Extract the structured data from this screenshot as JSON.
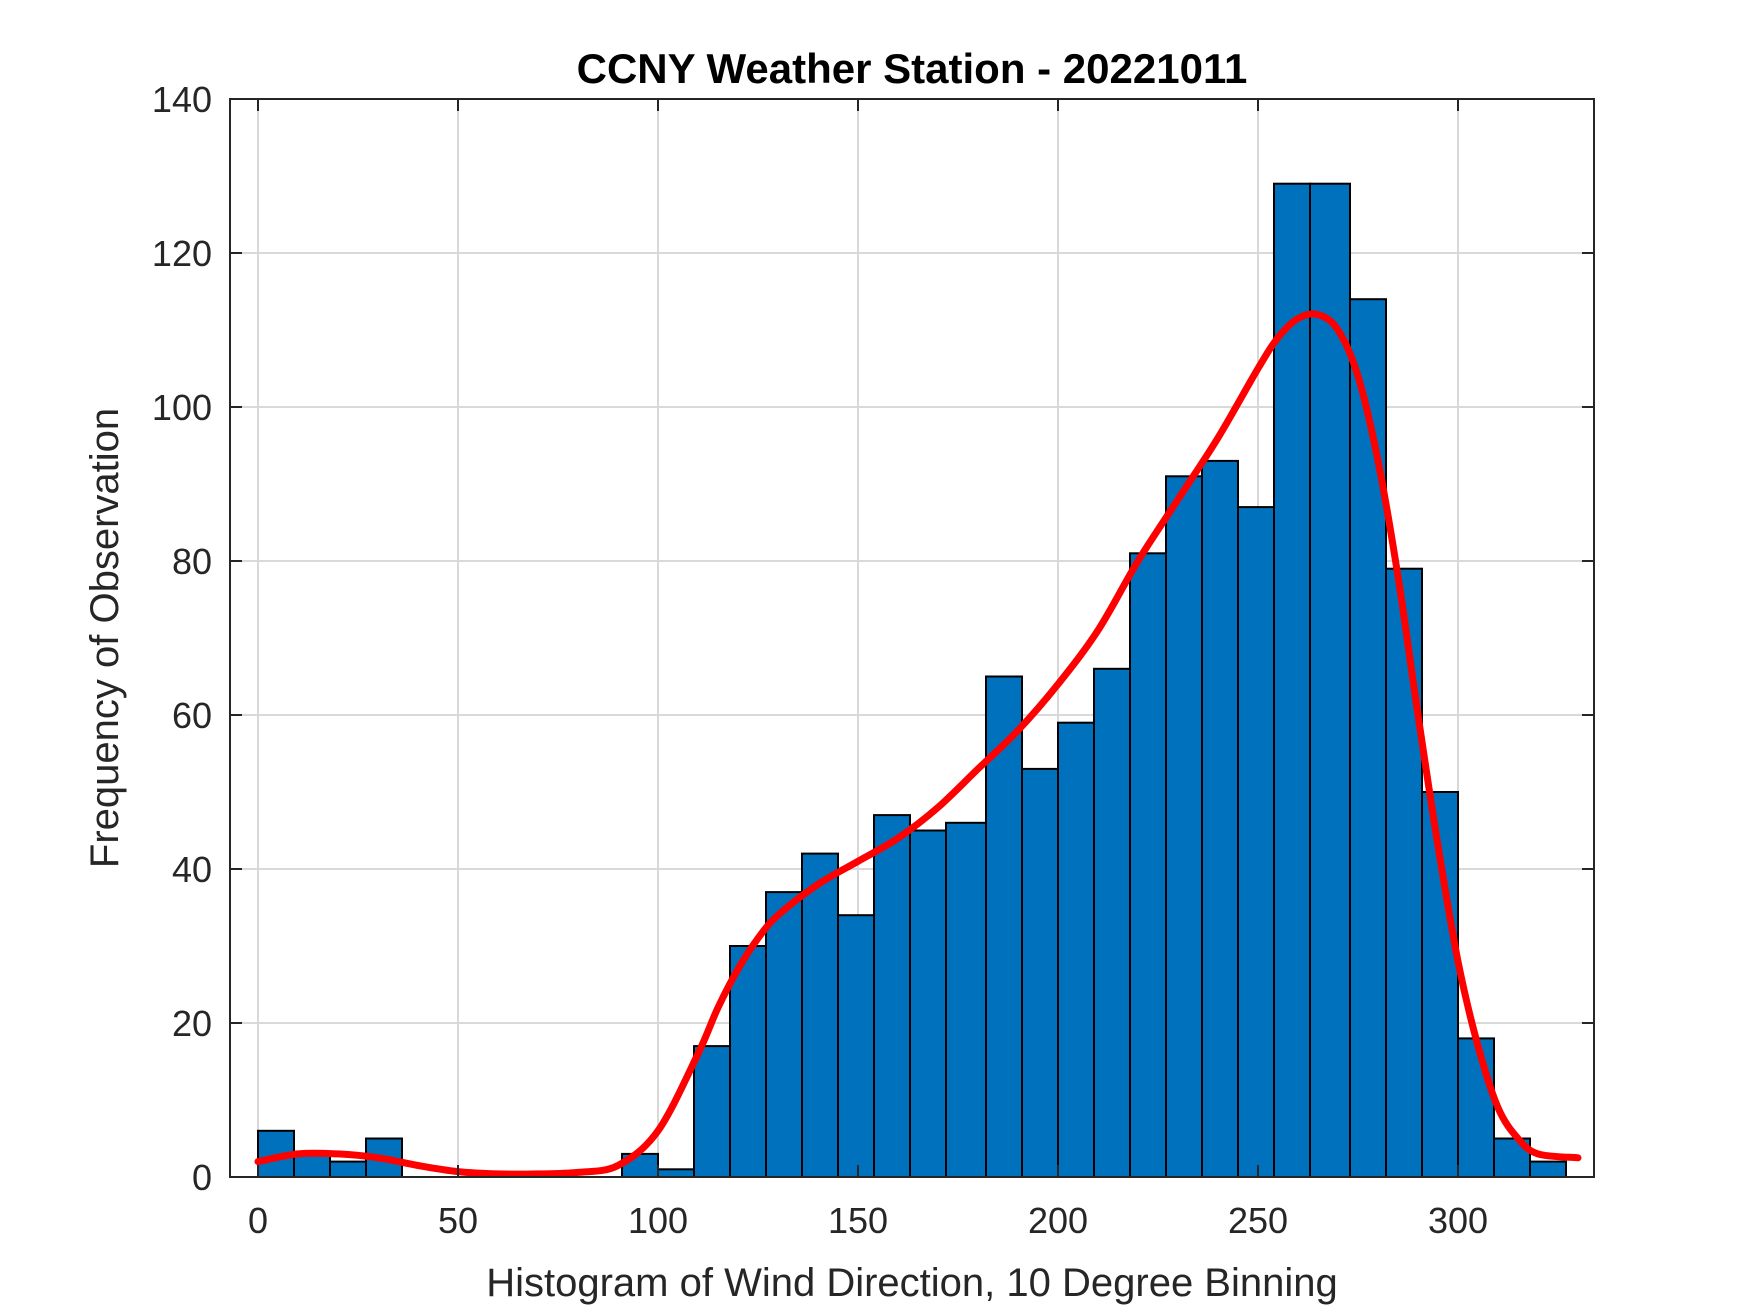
{
  "chart_data": {
    "type": "bar",
    "title": "CCNY Weather Station - 20221011",
    "xlabel": "Histogram of Wind Direction, 10 Degree Binning",
    "ylabel": "Frequency of Observation",
    "xlim": [
      -7,
      334
    ],
    "ylim": [
      0,
      140
    ],
    "xticks": [
      0,
      50,
      100,
      150,
      200,
      250,
      300
    ],
    "yticks": [
      0,
      20,
      40,
      60,
      80,
      100,
      120,
      140
    ],
    "grid": true,
    "bar_color": "#0072BD",
    "bar_edge_color": "#000000",
    "curve_color": "#FF0000",
    "bins": [
      {
        "x0": 0,
        "x1": 9,
        "count": 6
      },
      {
        "x0": 9,
        "x1": 18,
        "count": 3
      },
      {
        "x0": 18,
        "x1": 27,
        "count": 2
      },
      {
        "x0": 27,
        "x1": 36,
        "count": 5
      },
      {
        "x0": 36,
        "x1": 45,
        "count": 0
      },
      {
        "x0": 45,
        "x1": 54,
        "count": 0
      },
      {
        "x0": 54,
        "x1": 63,
        "count": 0
      },
      {
        "x0": 63,
        "x1": 72,
        "count": 0
      },
      {
        "x0": 72,
        "x1": 81,
        "count": 0
      },
      {
        "x0": 81,
        "x1": 91,
        "count": 0
      },
      {
        "x0": 91,
        "x1": 100,
        "count": 3
      },
      {
        "x0": 100,
        "x1": 109,
        "count": 1
      },
      {
        "x0": 109,
        "x1": 118,
        "count": 17
      },
      {
        "x0": 118,
        "x1": 127,
        "count": 30
      },
      {
        "x0": 127,
        "x1": 136,
        "count": 37
      },
      {
        "x0": 136,
        "x1": 145,
        "count": 42
      },
      {
        "x0": 145,
        "x1": 154,
        "count": 34
      },
      {
        "x0": 154,
        "x1": 163,
        "count": 47
      },
      {
        "x0": 163,
        "x1": 172,
        "count": 45
      },
      {
        "x0": 172,
        "x1": 182,
        "count": 46
      },
      {
        "x0": 182,
        "x1": 191,
        "count": 65
      },
      {
        "x0": 191,
        "x1": 200,
        "count": 53
      },
      {
        "x0": 200,
        "x1": 209,
        "count": 59
      },
      {
        "x0": 209,
        "x1": 218,
        "count": 66
      },
      {
        "x0": 218,
        "x1": 227,
        "count": 81
      },
      {
        "x0": 227,
        "x1": 236,
        "count": 91
      },
      {
        "x0": 236,
        "x1": 245,
        "count": 93
      },
      {
        "x0": 245,
        "x1": 254,
        "count": 87
      },
      {
        "x0": 254,
        "x1": 263,
        "count": 129
      },
      {
        "x0": 263,
        "x1": 273,
        "count": 129
      },
      {
        "x0": 273,
        "x1": 282,
        "count": 114
      },
      {
        "x0": 282,
        "x1": 291,
        "count": 79
      },
      {
        "x0": 291,
        "x1": 300,
        "count": 50
      },
      {
        "x0": 300,
        "x1": 309,
        "count": 18
      },
      {
        "x0": 309,
        "x1": 318,
        "count": 5
      },
      {
        "x0": 318,
        "x1": 327,
        "count": 2
      }
    ],
    "density_curve": {
      "x": [
        0,
        10,
        20,
        30,
        40,
        50,
        60,
        70,
        80,
        90,
        100,
        110,
        115,
        120,
        125,
        130,
        140,
        150,
        160,
        170,
        180,
        190,
        200,
        210,
        220,
        230,
        240,
        250,
        255,
        260,
        265,
        270,
        275,
        280,
        285,
        290,
        295,
        300,
        305,
        310,
        315,
        320,
        330
      ],
      "y": [
        2,
        3,
        3,
        2.5,
        1.5,
        0.7,
        0.4,
        0.4,
        0.6,
        1.5,
        6,
        16,
        22,
        27,
        31,
        34,
        38,
        41,
        44,
        48,
        53,
        58,
        64,
        71,
        80,
        88,
        96,
        105,
        109,
        111.5,
        112,
        110,
        104,
        93,
        78,
        60,
        43,
        28,
        17,
        9,
        5,
        3,
        2.5
      ]
    }
  }
}
